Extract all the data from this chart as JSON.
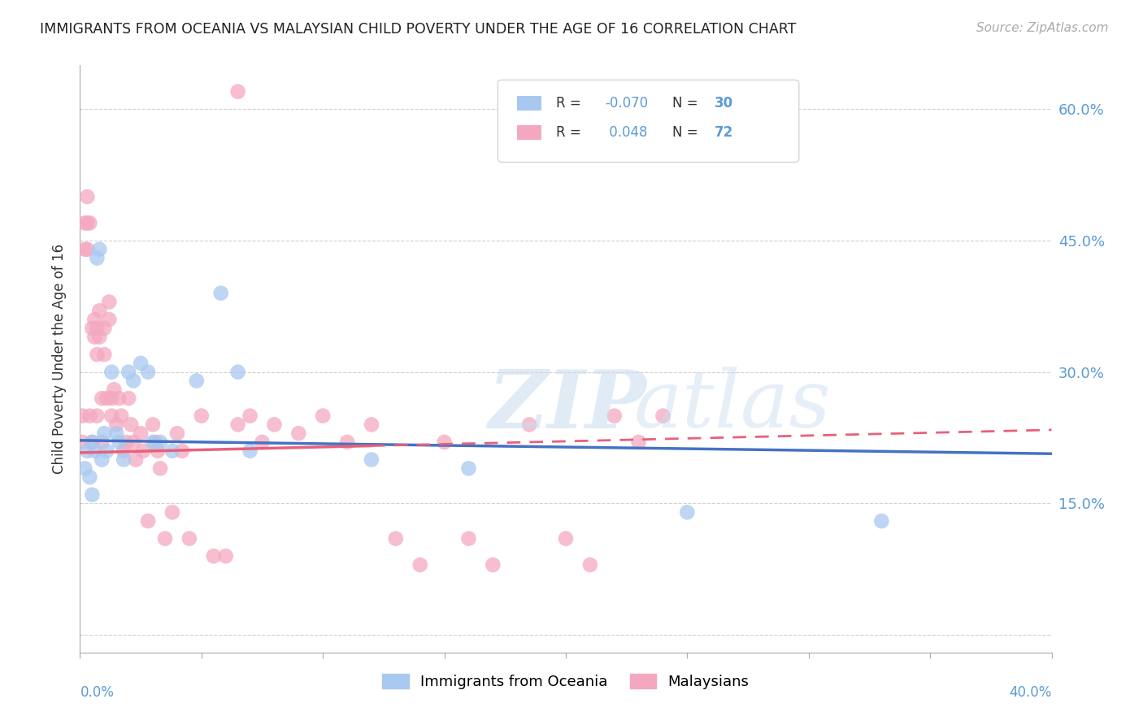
{
  "title": "IMMIGRANTS FROM OCEANIA VS MALAYSIAN CHILD POVERTY UNDER THE AGE OF 16 CORRELATION CHART",
  "source": "Source: ZipAtlas.com",
  "ylabel": "Child Poverty Under the Age of 16",
  "xlim": [
    0.0,
    0.4
  ],
  "ylim": [
    -0.02,
    0.65
  ],
  "yticks": [
    0.0,
    0.15,
    0.3,
    0.45,
    0.6
  ],
  "right_ytick_labels": [
    "",
    "15.0%",
    "30.0%",
    "45.0%",
    "60.0%"
  ],
  "color_blue": "#A8C8F0",
  "color_pink": "#F4A8C0",
  "color_line_blue": "#4472C4",
  "color_line_pink": "#E8607A",
  "blue_intercept": 0.222,
  "blue_slope": -0.038,
  "pink_intercept": 0.208,
  "pink_slope": 0.065,
  "blue_x": [
    0.002,
    0.003,
    0.004,
    0.005,
    0.005,
    0.006,
    0.007,
    0.008,
    0.009,
    0.01,
    0.011,
    0.013,
    0.015,
    0.016,
    0.018,
    0.02,
    0.022,
    0.025,
    0.028,
    0.03,
    0.033,
    0.038,
    0.048,
    0.058,
    0.065,
    0.07,
    0.12,
    0.16,
    0.25,
    0.33
  ],
  "blue_y": [
    0.19,
    0.21,
    0.18,
    0.22,
    0.16,
    0.21,
    0.43,
    0.44,
    0.2,
    0.23,
    0.21,
    0.3,
    0.23,
    0.22,
    0.2,
    0.3,
    0.29,
    0.31,
    0.3,
    0.22,
    0.22,
    0.21,
    0.29,
    0.39,
    0.3,
    0.21,
    0.2,
    0.19,
    0.14,
    0.13
  ],
  "pink_x": [
    0.001,
    0.001,
    0.002,
    0.002,
    0.003,
    0.003,
    0.003,
    0.004,
    0.004,
    0.005,
    0.005,
    0.006,
    0.006,
    0.007,
    0.007,
    0.007,
    0.008,
    0.008,
    0.009,
    0.009,
    0.01,
    0.01,
    0.011,
    0.012,
    0.012,
    0.013,
    0.013,
    0.014,
    0.015,
    0.016,
    0.017,
    0.018,
    0.019,
    0.02,
    0.021,
    0.022,
    0.023,
    0.025,
    0.026,
    0.028,
    0.03,
    0.031,
    0.032,
    0.033,
    0.035,
    0.038,
    0.04,
    0.042,
    0.045,
    0.05,
    0.055,
    0.06,
    0.065,
    0.065,
    0.07,
    0.075,
    0.08,
    0.09,
    0.1,
    0.11,
    0.12,
    0.13,
    0.14,
    0.15,
    0.16,
    0.17,
    0.185,
    0.2,
    0.21,
    0.22,
    0.23,
    0.24
  ],
  "pink_y": [
    0.25,
    0.22,
    0.47,
    0.44,
    0.47,
    0.44,
    0.5,
    0.47,
    0.25,
    0.35,
    0.22,
    0.34,
    0.36,
    0.32,
    0.35,
    0.25,
    0.37,
    0.34,
    0.27,
    0.22,
    0.35,
    0.32,
    0.27,
    0.38,
    0.36,
    0.27,
    0.25,
    0.28,
    0.24,
    0.27,
    0.25,
    0.21,
    0.22,
    0.27,
    0.24,
    0.22,
    0.2,
    0.23,
    0.21,
    0.13,
    0.24,
    0.22,
    0.21,
    0.19,
    0.11,
    0.14,
    0.23,
    0.21,
    0.11,
    0.25,
    0.09,
    0.09,
    0.62,
    0.24,
    0.25,
    0.22,
    0.24,
    0.23,
    0.25,
    0.22,
    0.24,
    0.11,
    0.08,
    0.22,
    0.11,
    0.08,
    0.24,
    0.11,
    0.08,
    0.25,
    0.22,
    0.25
  ]
}
